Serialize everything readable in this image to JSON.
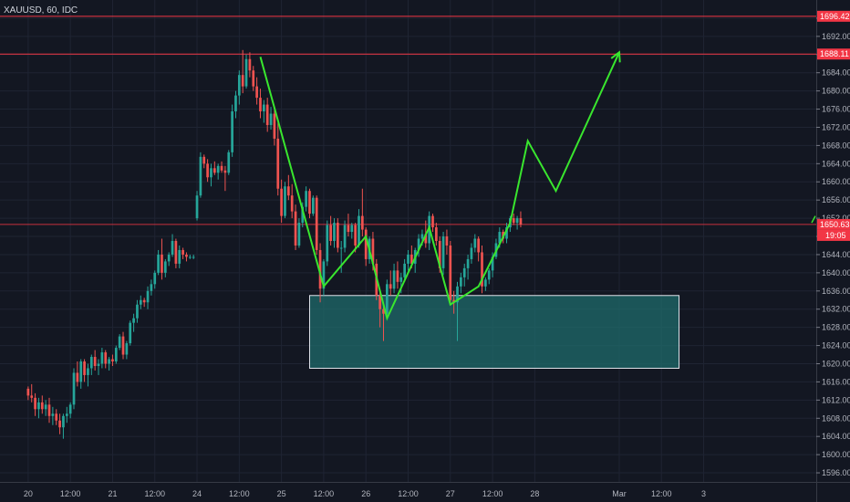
{
  "chart_data": {
    "type": "candlestick",
    "title": "XAUUSD, 60, IDC",
    "ylim": [
      1594,
      1700
    ],
    "y_ticks": [
      1596,
      1600,
      1604,
      1608,
      1612,
      1616,
      1620,
      1624,
      1628,
      1632,
      1636,
      1640,
      1644,
      1648,
      1652,
      1656,
      1660,
      1664,
      1668,
      1672,
      1676,
      1680,
      1684,
      1688,
      1692,
      1696
    ],
    "x_range": [
      -8,
      224
    ],
    "x_ticks": [
      {
        "label": "20",
        "bar": 0
      },
      {
        "label": "12:00",
        "bar": 12
      },
      {
        "label": "21",
        "bar": 24
      },
      {
        "label": "12:00",
        "bar": 36
      },
      {
        "label": "24",
        "bar": 48
      },
      {
        "label": "12:00",
        "bar": 60
      },
      {
        "label": "25",
        "bar": 72
      },
      {
        "label": "12:00",
        "bar": 84
      },
      {
        "label": "26",
        "bar": 96
      },
      {
        "label": "12:00",
        "bar": 108
      },
      {
        "label": "27",
        "bar": 120
      },
      {
        "label": "12:00",
        "bar": 132
      },
      {
        "label": "28",
        "bar": 144
      },
      {
        "label": "Mar",
        "bar": 168
      },
      {
        "label": "12:00",
        "bar": 180
      },
      {
        "label": "3",
        "bar": 192
      }
    ],
    "horizontal_levels": [
      {
        "price": 1696.42,
        "label": "1696.42",
        "color": "#f23645"
      },
      {
        "price": 1688.11,
        "label": "1688.11",
        "color": "#f23645"
      }
    ],
    "current_price": {
      "price": 1650.63,
      "label": "1650.63",
      "countdown": "19:05",
      "color": "#f23645"
    },
    "zone": {
      "x0": 80,
      "x1": 185,
      "y0": 1619,
      "y1": 1635,
      "fill": "#1f6b6b",
      "stroke": "#e0e3eb"
    },
    "zigzag_color": "#39e62e",
    "zigzag": [
      [
        66,
        1687.5
      ],
      [
        84,
        1637
      ],
      [
        96,
        1648
      ],
      [
        102,
        1630
      ],
      [
        114,
        1650
      ],
      [
        120,
        1633
      ],
      [
        128,
        1637
      ],
      [
        137,
        1651
      ],
      [
        142,
        1669
      ],
      [
        150,
        1658
      ],
      [
        168,
        1688.5
      ]
    ],
    "up_color": "#26a69a",
    "down_color": "#ef5350",
    "candles": [
      [
        1614.5,
        1615.0,
        1612.0,
        1613.0
      ],
      [
        1613.0,
        1615.5,
        1611.5,
        1612.5
      ],
      [
        1612.5,
        1613.5,
        1608.5,
        1610.0
      ],
      [
        1610.0,
        1612.5,
        1608.0,
        1611.5
      ],
      [
        1611.5,
        1613.0,
        1609.0,
        1610.0
      ],
      [
        1610.0,
        1612.0,
        1608.5,
        1611.0
      ],
      [
        1611.0,
        1612.5,
        1607.0,
        1608.5
      ],
      [
        1608.5,
        1610.5,
        1606.5,
        1609.0
      ],
      [
        1609.0,
        1610.0,
        1606.5,
        1607.5
      ],
      [
        1607.5,
        1609.0,
        1604.5,
        1606.0
      ],
      [
        1606.0,
        1609.0,
        1603.5,
        1608.5
      ],
      [
        1608.5,
        1610.5,
        1607.0,
        1609.0
      ],
      [
        1609.0,
        1611.5,
        1608.0,
        1611.0
      ],
      [
        1611.0,
        1619.0,
        1610.0,
        1618.0
      ],
      [
        1618.0,
        1620.5,
        1615.0,
        1616.0
      ],
      [
        1616.0,
        1621.0,
        1614.5,
        1620.5
      ],
      [
        1620.5,
        1621.0,
        1616.0,
        1617.5
      ],
      [
        1617.5,
        1620.0,
        1615.0,
        1619.0
      ],
      [
        1619.0,
        1622.0,
        1617.5,
        1621.5
      ],
      [
        1621.5,
        1623.0,
        1618.5,
        1619.5
      ],
      [
        1619.5,
        1621.0,
        1617.5,
        1620.0
      ],
      [
        1620.0,
        1623.5,
        1619.0,
        1622.5
      ],
      [
        1622.5,
        1623.0,
        1619.0,
        1620.0
      ],
      [
        1620.0,
        1621.5,
        1618.5,
        1621.0
      ],
      [
        1621.0,
        1622.0,
        1619.5,
        1620.5
      ],
      [
        1620.5,
        1624.0,
        1620.0,
        1623.5
      ],
      [
        1623.5,
        1626.5,
        1623.0,
        1626.0
      ],
      [
        1626.0,
        1627.0,
        1621.0,
        1622.0
      ],
      [
        1622.0,
        1625.0,
        1621.0,
        1624.5
      ],
      [
        1624.5,
        1629.5,
        1624.0,
        1629.0
      ],
      [
        1629.0,
        1631.0,
        1627.0,
        1630.0
      ],
      [
        1630.0,
        1634.0,
        1629.0,
        1633.0
      ],
      [
        1633.0,
        1635.0,
        1632.0,
        1634.0
      ],
      [
        1634.0,
        1634.5,
        1632.5,
        1633.5
      ],
      [
        1633.5,
        1637.0,
        1632.0,
        1636.0
      ],
      [
        1636.0,
        1638.5,
        1635.0,
        1637.5
      ],
      [
        1637.5,
        1640.5,
        1636.5,
        1640.0
      ],
      [
        1640.0,
        1645.0,
        1639.5,
        1644.0
      ],
      [
        1644.0,
        1647.5,
        1638.5,
        1640.0
      ],
      [
        1640.0,
        1643.0,
        1639.0,
        1642.5
      ],
      [
        1642.5,
        1644.5,
        1641.5,
        1644.0
      ],
      [
        1644.0,
        1648.5,
        1643.5,
        1647.0
      ],
      [
        1647.0,
        1647.5,
        1641.0,
        1642.0
      ],
      [
        1642.0,
        1646.0,
        1641.0,
        1645.0
      ],
      [
        1645.0,
        1645.5,
        1643.0,
        1644.0
      ],
      [
        1644.0,
        1644.5,
        1642.5,
        1643.5
      ],
      [
        1643.5,
        1644.0,
        1643.0,
        1643.5
      ],
      [
        1643.5,
        1644.0,
        1643.0,
        1643.5
      ],
      [
        1652.0,
        1658.0,
        1651.5,
        1657.0
      ],
      [
        1657.0,
        1666.5,
        1656.5,
        1665.5
      ],
      [
        1665.5,
        1666.0,
        1663.0,
        1664.0
      ],
      [
        1664.0,
        1665.0,
        1660.0,
        1661.0
      ],
      [
        1661.0,
        1664.0,
        1659.0,
        1663.0
      ],
      [
        1663.0,
        1664.5,
        1661.5,
        1662.0
      ],
      [
        1662.0,
        1664.0,
        1660.5,
        1663.5
      ],
      [
        1663.5,
        1664.5,
        1662.0,
        1662.5
      ],
      [
        1662.5,
        1663.5,
        1658.0,
        1662.0
      ],
      [
        1662.0,
        1667.0,
        1661.5,
        1666.5
      ],
      [
        1666.5,
        1677.0,
        1665.5,
        1675.5
      ],
      [
        1675.5,
        1680.0,
        1674.0,
        1679.0
      ],
      [
        1679.0,
        1684.5,
        1677.0,
        1683.5
      ],
      [
        1683.5,
        1689.0,
        1679.5,
        1681.0
      ],
      [
        1681.0,
        1688.0,
        1680.5,
        1687.0
      ],
      [
        1687.0,
        1688.5,
        1683.0,
        1684.5
      ],
      [
        1684.5,
        1685.5,
        1680.0,
        1681.0
      ],
      [
        1681.0,
        1683.0,
        1677.0,
        1678.5
      ],
      [
        1678.5,
        1680.5,
        1674.0,
        1675.5
      ],
      [
        1675.5,
        1678.0,
        1673.0,
        1677.0
      ],
      [
        1677.0,
        1678.5,
        1671.0,
        1672.5
      ],
      [
        1672.5,
        1676.5,
        1671.5,
        1675.0
      ],
      [
        1675.0,
        1676.0,
        1668.0,
        1669.5
      ],
      [
        1669.5,
        1673.0,
        1657.0,
        1658.5
      ],
      [
        1658.5,
        1660.5,
        1651.0,
        1652.5
      ],
      [
        1652.5,
        1660.0,
        1652.0,
        1659.0
      ],
      [
        1659.0,
        1661.5,
        1656.0,
        1657.0
      ],
      [
        1657.0,
        1659.5,
        1652.0,
        1653.5
      ],
      [
        1653.5,
        1655.0,
        1645.0,
        1646.0
      ],
      [
        1646.0,
        1652.0,
        1645.5,
        1651.0
      ],
      [
        1651.0,
        1655.5,
        1650.0,
        1654.5
      ],
      [
        1654.5,
        1659.0,
        1653.5,
        1658.0
      ],
      [
        1658.0,
        1658.5,
        1652.0,
        1653.0
      ],
      [
        1653.0,
        1657.0,
        1652.5,
        1656.5
      ],
      [
        1656.5,
        1657.0,
        1644.0,
        1645.0
      ],
      [
        1645.0,
        1646.5,
        1633.5,
        1636.5
      ],
      [
        1636.5,
        1643.0,
        1635.0,
        1642.5
      ],
      [
        1642.5,
        1651.5,
        1641.5,
        1650.5
      ],
      [
        1650.5,
        1652.5,
        1646.0,
        1647.0
      ],
      [
        1647.0,
        1652.0,
        1645.5,
        1651.0
      ],
      [
        1651.0,
        1652.0,
        1644.5,
        1645.5
      ],
      [
        1645.5,
        1647.0,
        1640.0,
        1645.5
      ],
      [
        1645.5,
        1651.5,
        1644.5,
        1650.5
      ],
      [
        1650.5,
        1653.0,
        1648.0,
        1649.0
      ],
      [
        1649.0,
        1651.0,
        1647.5,
        1650.5
      ],
      [
        1650.5,
        1651.0,
        1644.5,
        1646.0
      ],
      [
        1646.0,
        1654.0,
        1645.5,
        1652.5
      ],
      [
        1652.5,
        1658.5,
        1648.0,
        1649.5
      ],
      [
        1649.5,
        1650.0,
        1641.5,
        1643.0
      ],
      [
        1643.0,
        1648.0,
        1642.0,
        1647.5
      ],
      [
        1647.5,
        1649.0,
        1640.5,
        1642.0
      ],
      [
        1642.0,
        1643.0,
        1634.0,
        1635.0
      ],
      [
        1635.0,
        1636.0,
        1628.0,
        1632.0
      ],
      [
        1632.0,
        1633.0,
        1625.0,
        1631.0
      ],
      [
        1631.0,
        1638.5,
        1630.0,
        1637.5
      ],
      [
        1637.5,
        1640.5,
        1635.0,
        1636.5
      ],
      [
        1636.5,
        1642.0,
        1635.5,
        1640.5
      ],
      [
        1640.5,
        1642.5,
        1636.5,
        1638.0
      ],
      [
        1638.0,
        1640.0,
        1635.5,
        1639.0
      ],
      [
        1639.0,
        1643.0,
        1638.0,
        1642.0
      ],
      [
        1642.0,
        1645.0,
        1640.5,
        1644.0
      ],
      [
        1644.0,
        1646.0,
        1641.0,
        1642.0
      ],
      [
        1642.0,
        1645.5,
        1640.0,
        1645.0
      ],
      [
        1645.0,
        1648.5,
        1643.5,
        1647.5
      ],
      [
        1647.5,
        1649.5,
        1646.0,
        1648.5
      ],
      [
        1648.5,
        1651.5,
        1645.5,
        1646.5
      ],
      [
        1646.5,
        1653.5,
        1645.0,
        1652.5
      ],
      [
        1652.5,
        1653.0,
        1649.0,
        1650.0
      ],
      [
        1650.0,
        1651.0,
        1646.0,
        1647.0
      ],
      [
        1647.0,
        1648.0,
        1640.0,
        1641.0
      ],
      [
        1641.0,
        1649.0,
        1639.5,
        1648.0
      ],
      [
        1648.0,
        1649.5,
        1644.0,
        1646.0
      ],
      [
        1646.0,
        1647.0,
        1633.0,
        1634.0
      ],
      [
        1634.0,
        1636.0,
        1631.0,
        1633.5
      ],
      [
        1633.5,
        1638.0,
        1625.0,
        1637.0
      ],
      [
        1637.0,
        1640.0,
        1635.5,
        1639.0
      ],
      [
        1639.0,
        1642.0,
        1637.0,
        1641.0
      ],
      [
        1641.0,
        1644.0,
        1638.5,
        1643.0
      ],
      [
        1643.0,
        1646.5,
        1642.0,
        1645.5
      ],
      [
        1645.5,
        1648.5,
        1644.5,
        1647.5
      ],
      [
        1647.5,
        1648.0,
        1642.5,
        1644.5
      ],
      [
        1644.5,
        1646.0,
        1635.5,
        1637.0
      ],
      [
        1637.0,
        1639.0,
        1636.0,
        1638.5
      ],
      [
        1638.5,
        1641.0,
        1637.5,
        1640.5
      ],
      [
        1640.5,
        1644.5,
        1639.0,
        1643.5
      ],
      [
        1643.5,
        1647.5,
        1643.0,
        1646.5
      ],
      [
        1646.5,
        1650.0,
        1645.5,
        1649.0
      ],
      [
        1649.0,
        1649.5,
        1646.5,
        1647.5
      ],
      [
        1647.5,
        1651.0,
        1646.5,
        1650.0
      ],
      [
        1650.0,
        1652.5,
        1649.0,
        1652.0
      ],
      [
        1652.0,
        1653.0,
        1650.5,
        1651.0
      ],
      [
        1651.0,
        1652.5,
        1649.5,
        1652.0
      ],
      [
        1652.0,
        1653.5,
        1650.0,
        1650.6
      ]
    ]
  }
}
